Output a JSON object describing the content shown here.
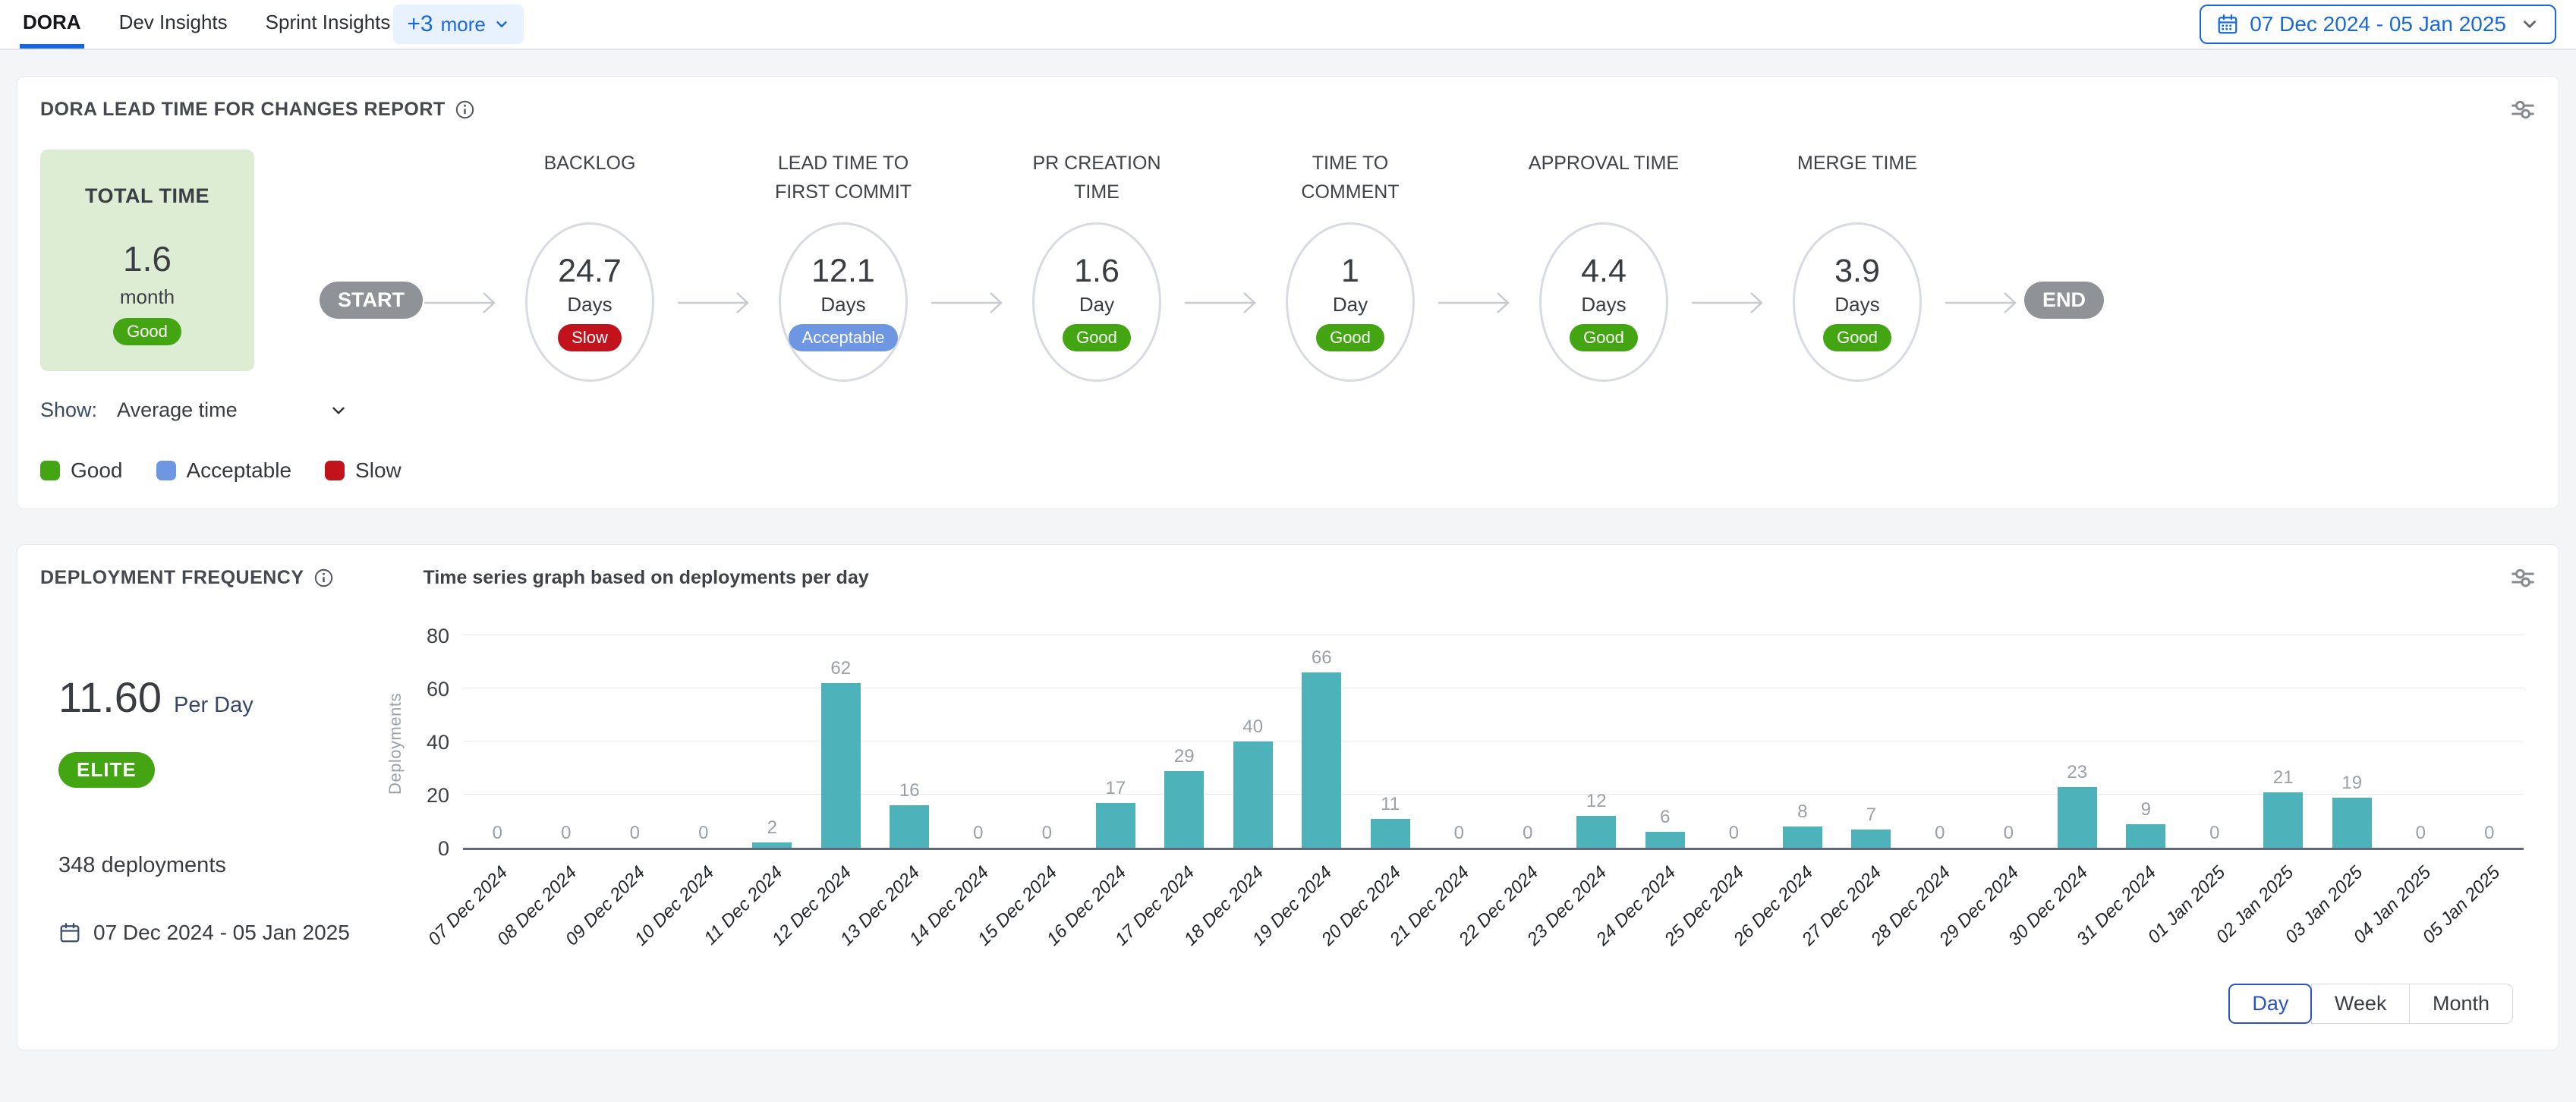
{
  "header": {
    "tabs": [
      {
        "label": "DORA",
        "active": true
      },
      {
        "label": "Dev Insights",
        "active": false
      },
      {
        "label": "Sprint Insights",
        "active": false
      }
    ],
    "more_count": "+3",
    "more_label": "more",
    "date_range": "07 Dec 2024 - 05 Jan 2025"
  },
  "colors": {
    "accent_blue": "#1868db",
    "good": "#43a512",
    "acceptable": "#6d96e3",
    "slow": "#c2131d",
    "bar": "#4db2ba"
  },
  "lead_time_card": {
    "title": "DORA LEAD TIME FOR CHANGES REPORT",
    "total": {
      "label": "TOTAL TIME",
      "value": "1.6",
      "unit": "month",
      "badge": "Good"
    },
    "start_label": "START",
    "end_label": "END",
    "stages": [
      {
        "name": "BACKLOG",
        "value": "24.7",
        "unit": "Days",
        "badge": "Slow"
      },
      {
        "name": "LEAD TIME TO FIRST COMMIT",
        "value": "12.1",
        "unit": "Days",
        "badge": "Acceptable"
      },
      {
        "name": "PR CREATION TIME",
        "value": "1.6",
        "unit": "Day",
        "badge": "Good"
      },
      {
        "name": "TIME TO COMMENT",
        "value": "1",
        "unit": "Day",
        "badge": "Good"
      },
      {
        "name": "APPROVAL TIME",
        "value": "4.4",
        "unit": "Days",
        "badge": "Good"
      },
      {
        "name": "MERGE TIME",
        "value": "3.9",
        "unit": "Days",
        "badge": "Good"
      }
    ],
    "show_label": "Show:",
    "show_value": "Average time",
    "legend": [
      {
        "label": "Good",
        "color": "#43a512"
      },
      {
        "label": "Acceptable",
        "color": "#6d96e3"
      },
      {
        "label": "Slow",
        "color": "#c2131d"
      }
    ]
  },
  "deployment_card": {
    "title": "DEPLOYMENT FREQUENCY",
    "subtitle": "Time series graph based on deployments per day",
    "rate_value": "11.60",
    "rate_unit": "Per Day",
    "tier_badge": "ELITE",
    "total_deployments": "348 deployments",
    "date_range": "07 Dec 2024 - 05 Jan 2025",
    "granularity": [
      {
        "label": "Day",
        "active": true
      },
      {
        "label": "Week",
        "active": false
      },
      {
        "label": "Month",
        "active": false
      }
    ]
  },
  "chart_data": {
    "type": "bar",
    "title": "Time series graph based on deployments per day",
    "xlabel": "",
    "ylabel": "Deployments",
    "ylim": [
      0,
      80
    ],
    "yticks": [
      0,
      20,
      40,
      60,
      80
    ],
    "grid": true,
    "bar_color": "#4db2ba",
    "categories": [
      "07 Dec 2024",
      "08 Dec 2024",
      "09 Dec 2024",
      "10 Dec 2024",
      "11 Dec 2024",
      "12 Dec 2024",
      "13 Dec 2024",
      "14 Dec 2024",
      "15 Dec 2024",
      "16 Dec 2024",
      "17 Dec 2024",
      "18 Dec 2024",
      "19 Dec 2024",
      "20 Dec 2024",
      "21 Dec 2024",
      "22 Dec 2024",
      "23 Dec 2024",
      "24 Dec 2024",
      "25 Dec 2024",
      "26 Dec 2024",
      "27 Dec 2024",
      "28 Dec 2024",
      "29 Dec 2024",
      "30 Dec 2024",
      "31 Dec 2024",
      "01 Jan 2025",
      "02 Jan 2025",
      "03 Jan 2025",
      "04 Jan 2025",
      "05 Jan 2025"
    ],
    "values": [
      0,
      0,
      0,
      0,
      2,
      62,
      16,
      0,
      0,
      17,
      29,
      40,
      66,
      11,
      0,
      0,
      12,
      6,
      0,
      8,
      7,
      0,
      0,
      23,
      9,
      0,
      21,
      19,
      0,
      0
    ]
  },
  "icons": {
    "calendar": "calendar-icon",
    "info": "info-icon",
    "sliders": "sliders-icon",
    "chevron_down": "chevron-down-icon"
  }
}
